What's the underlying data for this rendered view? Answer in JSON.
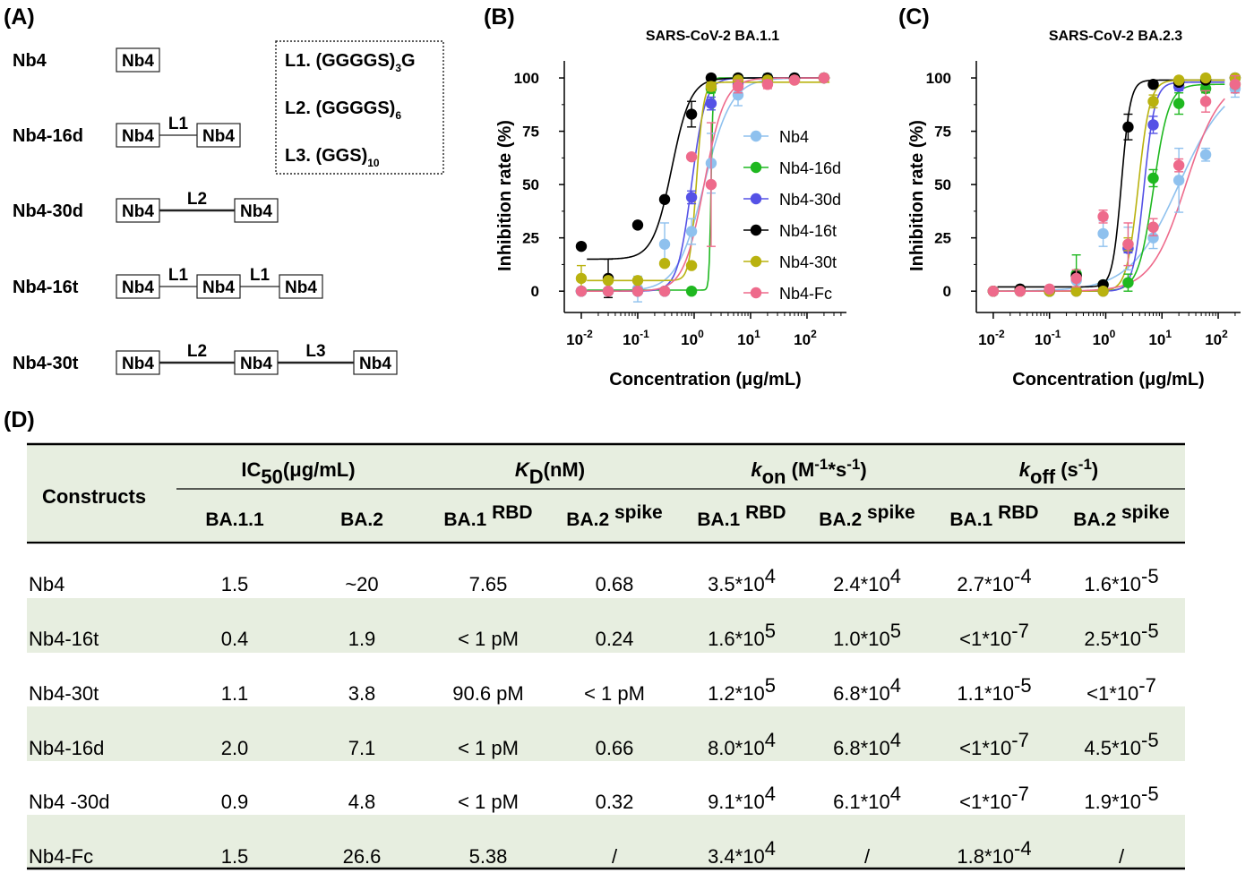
{
  "panel_labels": {
    "a": "(A)",
    "b": "(B)",
    "c": "(C)",
    "d": "(D)"
  },
  "panel_a": {
    "constructs": [
      {
        "name": "Nb4",
        "boxes": [
          "Nb4"
        ],
        "linkers": []
      },
      {
        "name": "Nb4-16d",
        "boxes": [
          "Nb4",
          "Nb4"
        ],
        "linkers": [
          "L1"
        ]
      },
      {
        "name": "Nb4-30d",
        "boxes": [
          "Nb4",
          "Nb4"
        ],
        "linkers": [
          "L2"
        ]
      },
      {
        "name": "Nb4-16t",
        "boxes": [
          "Nb4",
          "Nb4",
          "Nb4"
        ],
        "linkers": [
          "L1",
          "L1"
        ]
      },
      {
        "name": "Nb4-30t",
        "boxes": [
          "Nb4",
          "Nb4",
          "Nb4"
        ],
        "linkers": [
          "L2",
          "L3"
        ]
      }
    ],
    "linker_defs": [
      {
        "label": "L1. (GGGGS)",
        "sub": "3",
        "tail": "G"
      },
      {
        "label": "L2. (GGGGS)",
        "sub": "6",
        "tail": ""
      },
      {
        "label": "L3. (GGS)",
        "sub": "10",
        "tail": ""
      }
    ]
  },
  "chart_data": [
    {
      "type": "scatter",
      "panel": "B",
      "title": "SARS-CoV-2 BA.1.1",
      "xlabel": "Concentration (μg/mL)",
      "ylabel": "Inhibition rate (%)",
      "x_scale": "log",
      "xlim": [
        0.005,
        500
      ],
      "ylim": [
        -10,
        108
      ],
      "x_ticks": [
        {
          "v": 0.01,
          "base": "10",
          "exp": "-2"
        },
        {
          "v": 0.1,
          "base": "10",
          "exp": "-1"
        },
        {
          "v": 1,
          "base": "10",
          "exp": "0"
        },
        {
          "v": 10,
          "base": "10",
          "exp": "1"
        },
        {
          "v": 100,
          "base": "10",
          "exp": "2"
        }
      ],
      "y_ticks": [
        0,
        25,
        50,
        75,
        100
      ],
      "legend": "right",
      "series": [
        {
          "name": "Nb4",
          "color": "#8fc1ee",
          "ic50": 1.5,
          "hill": 1.8,
          "bottom": 0,
          "top": 100,
          "x": [
            0.01,
            0.03,
            0.1,
            0.3,
            0.9,
            2,
            6,
            20,
            60,
            200
          ],
          "y": [
            0,
            0,
            1,
            22,
            28,
            60,
            92,
            99,
            100,
            100
          ],
          "err": [
            0,
            0,
            6,
            10,
            6,
            14,
            5,
            3,
            0,
            0
          ]
        },
        {
          "name": "Nb4-16d",
          "color": "#1fb820",
          "ic50": 2.0,
          "hill": 25,
          "bottom": 0.5,
          "top": 100,
          "x": [
            0.01,
            0.03,
            0.1,
            0.3,
            0.9,
            2,
            6,
            20,
            60,
            200
          ],
          "y": [
            0,
            0,
            0,
            0,
            0,
            95,
            100,
            100,
            100,
            100
          ],
          "err": [
            0,
            0,
            0,
            0,
            0,
            2,
            0,
            0,
            0,
            0
          ]
        },
        {
          "name": "Nb4-30d",
          "color": "#5552e6",
          "ic50": 0.9,
          "hill": 3.5,
          "bottom": 0,
          "top": 100,
          "x": [
            0.01,
            0.03,
            0.1,
            0.3,
            0.9,
            2,
            6,
            20,
            60,
            200
          ],
          "y": [
            0,
            0,
            0,
            0,
            44,
            88,
            97,
            98,
            100,
            100
          ],
          "err": [
            0,
            0,
            0,
            0,
            3,
            3,
            2,
            2,
            0,
            0
          ]
        },
        {
          "name": "Nb4-16t",
          "color": "#000000",
          "ic50": 0.4,
          "hill": 2.6,
          "bottom": 15,
          "top": 100,
          "x": [
            0.01,
            0.03,
            0.1,
            0.3,
            0.9,
            2,
            6,
            20,
            60,
            200
          ],
          "y": [
            21,
            6,
            31,
            43,
            83,
            100,
            100,
            100,
            100,
            100
          ],
          "err": [
            0,
            9,
            0,
            0,
            6,
            0,
            0,
            0,
            0,
            0
          ]
        },
        {
          "name": "Nb4-30t",
          "color": "#b9b20f",
          "ic50": 1.1,
          "hill": 7,
          "bottom": 5,
          "top": 98,
          "x": [
            0.01,
            0.03,
            0.1,
            0.3,
            0.9,
            2,
            6,
            20,
            60,
            200
          ],
          "y": [
            6,
            5,
            5,
            13,
            12,
            96,
            99,
            99,
            99,
            100
          ],
          "err": [
            6,
            0,
            0,
            0,
            0,
            2,
            0,
            0,
            0,
            0
          ]
        },
        {
          "name": "Nb4-Fc",
          "color": "#ee6a8b",
          "ic50": 1.5,
          "hill": 2.4,
          "bottom": 0,
          "top": 100,
          "x": [
            0.01,
            0.03,
            0.1,
            0.3,
            0.9,
            2,
            6,
            20,
            60,
            200
          ],
          "y": [
            0,
            0,
            0,
            0,
            63,
            50,
            96,
            97,
            99,
            100
          ],
          "err": [
            0,
            0,
            0,
            0,
            0,
            29,
            3,
            2,
            0,
            0
          ]
        }
      ]
    },
    {
      "type": "scatter",
      "panel": "C",
      "title": "SARS-CoV-2 BA.2.3",
      "xlabel": "Concentration (μg/mL)",
      "ylabel": "Inhibition rate (%)",
      "x_scale": "log",
      "xlim": [
        0.005,
        250
      ],
      "ylim": [
        -10,
        108
      ],
      "x_ticks": [
        {
          "v": 0.01,
          "base": "10",
          "exp": "-2"
        },
        {
          "v": 0.1,
          "base": "10",
          "exp": "-1"
        },
        {
          "v": 1,
          "base": "10",
          "exp": "0"
        },
        {
          "v": 10,
          "base": "10",
          "exp": "1"
        },
        {
          "v": 100,
          "base": "10",
          "exp": "2"
        }
      ],
      "y_ticks": [
        0,
        25,
        50,
        75,
        100
      ],
      "legend": "none",
      "series": [
        {
          "name": "Nb4",
          "color": "#8fc1ee",
          "ic50": 20,
          "hill": 1.0,
          "bottom": 0,
          "top": 100,
          "x": [
            0.01,
            0.03,
            0.1,
            0.3,
            0.9,
            2.5,
            7,
            20,
            60,
            200
          ],
          "y": [
            0,
            0,
            0,
            5,
            27,
            20,
            25,
            52,
            64,
            95
          ],
          "err": [
            0,
            0,
            0,
            0,
            6,
            10,
            5,
            15,
            3,
            4
          ]
        },
        {
          "name": "Nb4-16d",
          "color": "#1fb820",
          "ic50": 7.1,
          "hill": 3.2,
          "bottom": 0,
          "top": 97,
          "x": [
            0.01,
            0.03,
            0.1,
            0.3,
            0.9,
            2.5,
            7,
            20,
            60,
            200
          ],
          "y": [
            0,
            0,
            0,
            8,
            3,
            4,
            53,
            88,
            95,
            97
          ],
          "err": [
            0,
            0,
            0,
            9,
            0,
            4,
            4,
            5,
            2,
            0
          ]
        },
        {
          "name": "Nb4-30d",
          "color": "#5552e6",
          "ic50": 4.8,
          "hill": 4.5,
          "bottom": 0,
          "top": 98,
          "x": [
            0.01,
            0.03,
            0.1,
            0.3,
            0.9,
            2.5,
            7,
            20,
            60,
            200
          ],
          "y": [
            0,
            0,
            0,
            0,
            0,
            20,
            78,
            96,
            99,
            100
          ],
          "err": [
            0,
            0,
            0,
            0,
            0,
            2,
            4,
            2,
            0,
            0
          ]
        },
        {
          "name": "Nb4-16t",
          "color": "#000000",
          "ic50": 1.9,
          "hill": 5.5,
          "bottom": 2,
          "top": 99,
          "x": [
            0.01,
            0.03,
            0.1,
            0.3,
            0.9,
            2.5,
            7,
            20,
            60,
            200
          ],
          "y": [
            0,
            1,
            0,
            7,
            3,
            77,
            97,
            98,
            99,
            100
          ],
          "err": [
            0,
            0,
            0,
            0,
            0,
            6,
            0,
            0,
            0,
            0
          ]
        },
        {
          "name": "Nb4-30t",
          "color": "#b9b20f",
          "ic50": 3.8,
          "hill": 4.2,
          "bottom": 0,
          "top": 99,
          "x": [
            0.01,
            0.03,
            0.1,
            0.3,
            0.9,
            2.5,
            7,
            20,
            60,
            200
          ],
          "y": [
            0,
            0,
            0,
            0,
            0,
            22,
            89,
            99,
            100,
            100
          ],
          "err": [
            0,
            0,
            0,
            0,
            0,
            3,
            3,
            0,
            0,
            0
          ]
        },
        {
          "name": "Nb4-Fc",
          "color": "#ee6a8b",
          "ic50": 26.6,
          "hill": 1.4,
          "bottom": 0,
          "top": 100,
          "x": [
            0.01,
            0.03,
            0.1,
            0.3,
            0.9,
            2.5,
            7,
            20,
            60,
            200
          ],
          "y": [
            0,
            0,
            1,
            6,
            35,
            22,
            30,
            59,
            89,
            97
          ],
          "err": [
            0,
            0,
            0,
            4,
            3,
            10,
            4,
            3,
            5,
            4
          ]
        }
      ]
    }
  ],
  "table": {
    "header": {
      "constructs": "Constructs",
      "ic50": {
        "pre": "IC",
        "sub": "50",
        "post": "(μg/mL)"
      },
      "kd": {
        "k": "K",
        "sub": "D",
        "post": "(nM)"
      },
      "kon": {
        "k": "k",
        "sub": "on",
        "unit": " (M",
        "e1": "-1",
        "mid": "*s",
        "e2": "-1",
        "close": ")"
      },
      "koff": {
        "k": "k",
        "sub": "off",
        "unit": " (s",
        "e1": "-1",
        "close": ")"
      },
      "sub_columns": [
        {
          "main": "BA.1.1",
          "sup": ""
        },
        {
          "main": "BA.2",
          "sup": ""
        },
        {
          "main": "BA.1",
          "sup": "RBD"
        },
        {
          "main": "BA.2",
          "sup": "spike"
        },
        {
          "main": "BA.1",
          "sup": "RBD"
        },
        {
          "main": "BA.2",
          "sup": "spike"
        },
        {
          "main": "BA.1",
          "sup": "RBD"
        },
        {
          "main": "BA.2",
          "sup": "spike"
        }
      ]
    },
    "rows": [
      {
        "construct": "Nb4",
        "ic50_ba11": "1.5",
        "ic50_ba2": "~20",
        "kd_ba1": "7.65",
        "kd_ba2": "0.68",
        "kon_ba1": {
          "m": "3.5*10",
          "e": "4"
        },
        "kon_ba2": {
          "m": "2.4*10",
          "e": "4"
        },
        "koff_ba1": {
          "m": "2.7*10",
          "e": "-4"
        },
        "koff_ba2": {
          "m": "1.6*10",
          "e": "-5"
        }
      },
      {
        "construct": "Nb4-16t",
        "ic50_ba11": "0.4",
        "ic50_ba2": "1.9",
        "kd_ba1": "< 1 pM",
        "kd_ba2": "0.24",
        "kon_ba1": {
          "m": "1.6*10",
          "e": "5"
        },
        "kon_ba2": {
          "m": "1.0*10",
          "e": "5"
        },
        "koff_ba1": {
          "m": "<1*10",
          "e": "-7"
        },
        "koff_ba2": {
          "m": "2.5*10",
          "e": "-5"
        }
      },
      {
        "construct": "Nb4-30t",
        "ic50_ba11": "1.1",
        "ic50_ba2": "3.8",
        "kd_ba1": "90.6 pM",
        "kd_ba2": "< 1 pM",
        "kon_ba1": {
          "m": "1.2*10",
          "e": "5"
        },
        "kon_ba2": {
          "m": "6.8*10",
          "e": "4"
        },
        "koff_ba1": {
          "m": "1.1*10",
          "e": "-5"
        },
        "koff_ba2": {
          "m": "<1*10",
          "e": "-7"
        }
      },
      {
        "construct": "Nb4-16d",
        "ic50_ba11": "2.0",
        "ic50_ba2": "7.1",
        "kd_ba1": "< 1 pM",
        "kd_ba2": "0.66",
        "kon_ba1": {
          "m": "8.0*10",
          "e": "4"
        },
        "kon_ba2": {
          "m": "6.8*10",
          "e": "4"
        },
        "koff_ba1": {
          "m": "<1*10",
          "e": "-7"
        },
        "koff_ba2": {
          "m": "4.5*10",
          "e": "-5"
        }
      },
      {
        "construct": "Nb4 -30d",
        "ic50_ba11": "0.9",
        "ic50_ba2": "4.8",
        "kd_ba1": "< 1 pM",
        "kd_ba2": "0.32",
        "kon_ba1": {
          "m": "9.1*10",
          "e": "4"
        },
        "kon_ba2": {
          "m": "6.1*10",
          "e": "4"
        },
        "koff_ba1": {
          "m": "<1*10",
          "e": "-7"
        },
        "koff_ba2": {
          "m": "1.9*10",
          "e": "-5"
        }
      },
      {
        "construct": "Nb4-Fc",
        "ic50_ba11": "1.5",
        "ic50_ba2": "26.6",
        "kd_ba1": "5.38",
        "kd_ba2": "/",
        "kon_ba1": {
          "m": "3.4*10",
          "e": "4"
        },
        "kon_ba2": {
          "m": "/",
          "e": ""
        },
        "koff_ba1": {
          "m": "1.8*10",
          "e": "-4"
        },
        "koff_ba2": {
          "m": "/",
          "e": ""
        }
      }
    ]
  }
}
